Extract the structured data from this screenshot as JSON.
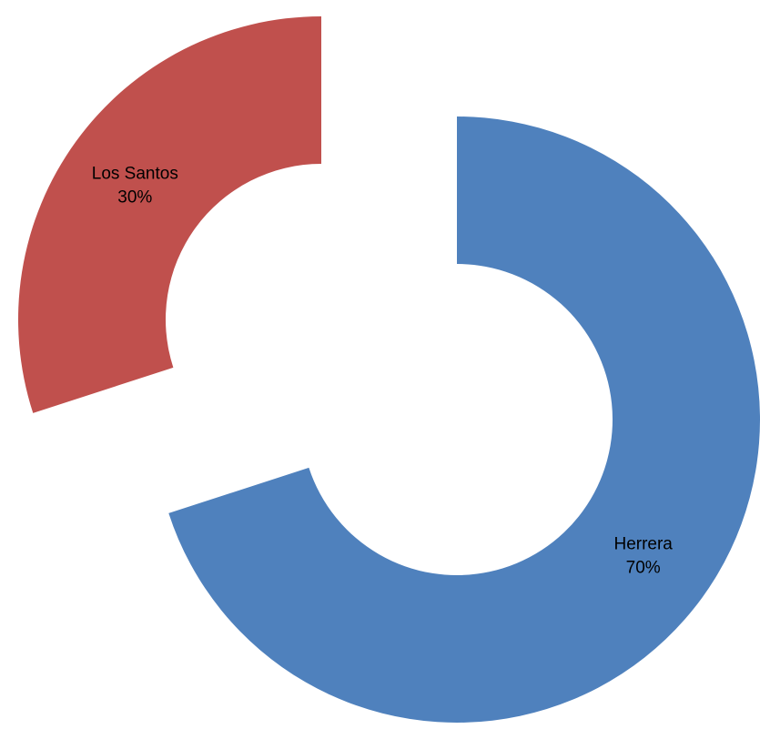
{
  "chart_data": {
    "type": "pie",
    "style": "exploded-doughnut",
    "title": "",
    "slices": [
      {
        "label": "Herrera",
        "value": 70,
        "percent_label": "70%",
        "color": "#4F81BD"
      },
      {
        "label": "Los Santos",
        "value": 30,
        "percent_label": "30%",
        "color": "#C0504D"
      }
    ],
    "legend": "none"
  }
}
